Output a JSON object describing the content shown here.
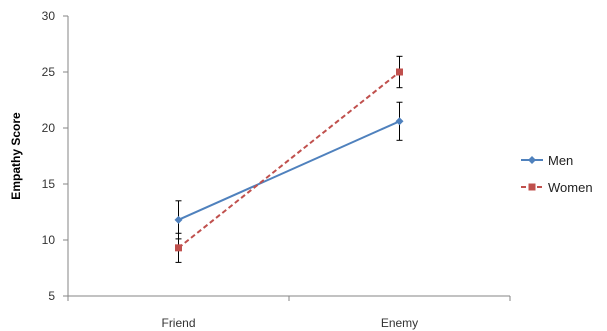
{
  "chart_data": {
    "type": "line",
    "categories": [
      "Friend",
      "Enemy"
    ],
    "ylabel": "Empathy Score",
    "ylim": [
      5,
      30
    ],
    "yticks": [
      5,
      10,
      15,
      20,
      25,
      30
    ],
    "grid": false,
    "legend": "right",
    "series": [
      {
        "name": "Men",
        "values": [
          11.8,
          20.6
        ],
        "errors": [
          1.7,
          1.7
        ],
        "color": "#4F81BD",
        "marker": "diamond",
        "dash": "solid"
      },
      {
        "name": "Women",
        "values": [
          9.3,
          25.0
        ],
        "errors": [
          1.3,
          1.4
        ],
        "color": "#C0504D",
        "marker": "square",
        "dash": "dashed"
      }
    ]
  }
}
